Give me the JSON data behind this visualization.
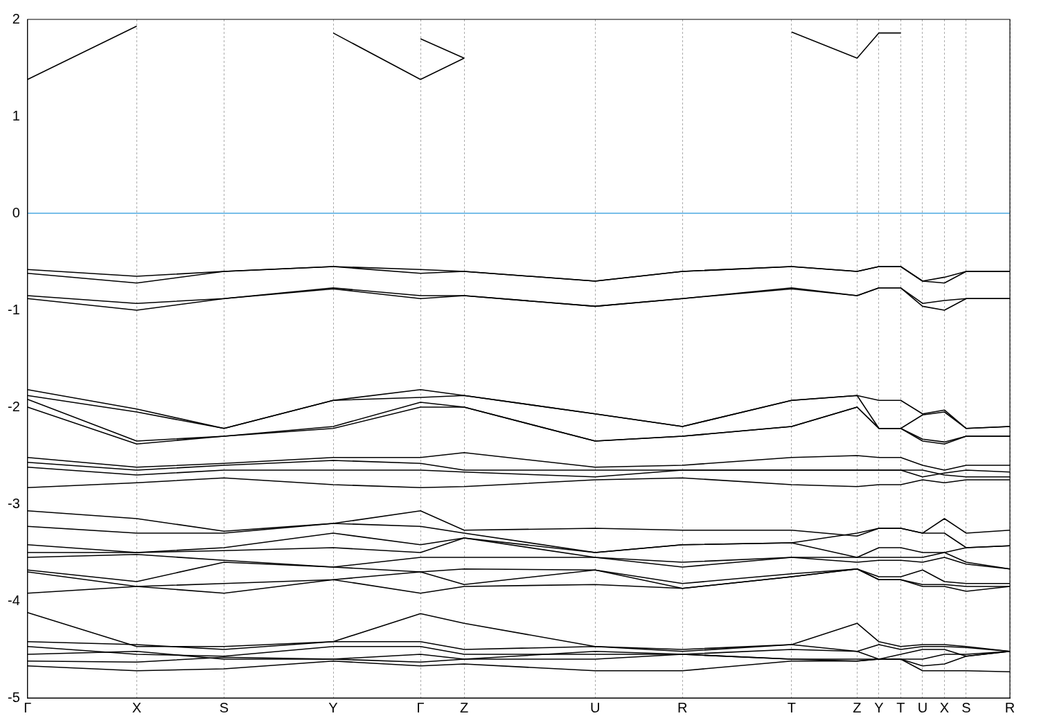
{
  "chart_data": {
    "type": "line",
    "categories": [
      "Γ",
      null,
      null,
      null,
      null,
      "X",
      null,
      null,
      null,
      "S",
      null,
      null,
      null,
      null,
      "Y",
      null,
      null,
      null,
      "Γ",
      null,
      "Z",
      null,
      null,
      null,
      null,
      null,
      "U",
      null,
      null,
      null,
      "R",
      null,
      null,
      null,
      null,
      "T",
      null,
      null,
      "Z",
      "Y",
      "T",
      "U",
      "X",
      "S",
      null,
      "R"
    ],
    "ylim": [
      -5,
      2
    ],
    "yticks": [
      -5,
      -4,
      -3,
      -2,
      -1,
      0,
      1,
      2
    ],
    "grid": "x",
    "legend": false,
    "marker": "none",
    "line_style": "solid",
    "ref_lines": [
      {
        "axis": "y",
        "value": 0,
        "color": "#4aa8e0"
      }
    ],
    "series": [
      {
        "color": "#000000",
        "values": [
          1.38,
          null,
          null,
          null,
          null,
          1.93,
          null,
          null,
          null,
          null,
          null,
          null,
          null,
          null,
          null,
          null,
          null,
          null,
          null,
          null,
          null,
          null,
          null,
          null,
          null,
          null,
          null,
          null,
          null,
          null,
          null,
          null,
          null,
          null,
          null,
          null,
          null,
          null,
          null,
          null,
          null,
          null,
          null,
          null,
          null,
          null
        ]
      },
      {
        "color": "#000000",
        "values": [
          null,
          null,
          null,
          null,
          null,
          null,
          null,
          null,
          null,
          null,
          null,
          null,
          null,
          null,
          1.86,
          null,
          null,
          null,
          1.38,
          null,
          1.6,
          null,
          null,
          null,
          null,
          null,
          null,
          null,
          null,
          null,
          null,
          null,
          null,
          null,
          null,
          null,
          null,
          null,
          null,
          null,
          null,
          null,
          null,
          null,
          null,
          null
        ]
      },
      {
        "color": "#000000",
        "values": [
          null,
          null,
          null,
          null,
          null,
          null,
          null,
          null,
          null,
          null,
          null,
          null,
          null,
          null,
          null,
          null,
          null,
          null,
          null,
          null,
          null,
          null,
          null,
          null,
          null,
          null,
          null,
          null,
          null,
          null,
          null,
          null,
          null,
          null,
          null,
          1.87,
          null,
          null,
          1.6,
          1.86,
          1.86,
          null,
          null,
          null,
          null,
          null
        ]
      },
      {
        "color": "#000000",
        "values": [
          null,
          null,
          null,
          null,
          null,
          null,
          null,
          null,
          null,
          null,
          null,
          null,
          null,
          null,
          null,
          null,
          null,
          null,
          1.8,
          null,
          1.6,
          null,
          null,
          null,
          null,
          null,
          null,
          null,
          null,
          null,
          null,
          null,
          null,
          null,
          null,
          null,
          null,
          null,
          null,
          null,
          null,
          null,
          null,
          null,
          null,
          null
        ]
      },
      {
        "color": "#000000",
        "values": [
          -0.58,
          null,
          null,
          null,
          null,
          -0.65,
          null,
          null,
          null,
          -0.6,
          null,
          null,
          null,
          null,
          -0.55,
          null,
          null,
          null,
          -0.58,
          null,
          -0.6,
          null,
          null,
          null,
          null,
          null,
          -0.7,
          null,
          null,
          null,
          -0.6,
          null,
          null,
          null,
          null,
          -0.55,
          null,
          null,
          -0.6,
          -0.55,
          -0.55,
          -0.7,
          -0.66,
          -0.6,
          null,
          -0.6
        ]
      },
      {
        "color": "#000000",
        "values": [
          -0.62,
          null,
          null,
          null,
          null,
          -0.72,
          null,
          null,
          null,
          -0.6,
          null,
          null,
          null,
          null,
          -0.55,
          null,
          null,
          null,
          -0.62,
          null,
          -0.6,
          null,
          null,
          null,
          null,
          null,
          -0.7,
          null,
          null,
          null,
          -0.6,
          null,
          null,
          null,
          null,
          -0.55,
          null,
          null,
          -0.6,
          -0.55,
          -0.55,
          -0.7,
          -0.72,
          -0.6,
          null,
          -0.6
        ]
      },
      {
        "color": "#000000",
        "values": [
          -0.85,
          null,
          null,
          null,
          null,
          -0.93,
          null,
          null,
          null,
          -0.88,
          null,
          null,
          null,
          null,
          -0.77,
          null,
          null,
          null,
          -0.85,
          null,
          -0.85,
          null,
          null,
          null,
          null,
          null,
          -0.96,
          null,
          null,
          null,
          -0.88,
          null,
          null,
          null,
          null,
          -0.77,
          null,
          null,
          -0.85,
          -0.77,
          -0.77,
          -0.93,
          -0.9,
          -0.88,
          null,
          -0.88
        ]
      },
      {
        "color": "#000000",
        "values": [
          -0.88,
          null,
          null,
          null,
          null,
          -1.0,
          null,
          null,
          null,
          -0.88,
          null,
          null,
          null,
          null,
          -0.78,
          null,
          null,
          null,
          -0.88,
          null,
          -0.85,
          null,
          null,
          null,
          null,
          null,
          -0.96,
          null,
          null,
          null,
          -0.88,
          null,
          null,
          null,
          null,
          -0.78,
          null,
          null,
          -0.85,
          -0.77,
          -0.77,
          -0.96,
          -1.0,
          -0.88,
          null,
          -0.88
        ]
      },
      {
        "color": "#000000",
        "values": [
          -1.82,
          null,
          null,
          null,
          null,
          -2.02,
          null,
          null,
          null,
          -2.22,
          null,
          null,
          null,
          null,
          -1.93,
          null,
          null,
          null,
          -1.82,
          null,
          -1.88,
          null,
          null,
          null,
          null,
          null,
          -2.07,
          null,
          null,
          null,
          -2.2,
          null,
          null,
          null,
          null,
          -1.93,
          null,
          null,
          -1.88,
          -1.93,
          -1.93,
          -2.07,
          -2.03,
          -2.22,
          null,
          -2.2
        ]
      },
      {
        "color": "#000000",
        "values": [
          -1.88,
          null,
          null,
          null,
          null,
          -2.05,
          null,
          null,
          null,
          -2.22,
          null,
          null,
          null,
          null,
          -1.93,
          null,
          null,
          null,
          -1.9,
          null,
          -1.88,
          null,
          null,
          null,
          null,
          null,
          -2.07,
          null,
          null,
          null,
          -2.2,
          null,
          null,
          null,
          null,
          -1.93,
          null,
          null,
          -1.88,
          -2.22,
          -2.22,
          -2.08,
          -2.05,
          -2.22,
          null,
          -2.2
        ]
      },
      {
        "color": "#000000",
        "values": [
          -1.92,
          null,
          null,
          null,
          null,
          -2.35,
          null,
          null,
          null,
          -2.3,
          null,
          null,
          null,
          null,
          -2.2,
          null,
          null,
          null,
          -1.95,
          null,
          -2.0,
          null,
          null,
          null,
          null,
          null,
          -2.35,
          null,
          null,
          null,
          -2.3,
          null,
          null,
          null,
          null,
          -2.2,
          null,
          null,
          -2.0,
          -2.22,
          -2.22,
          -2.33,
          -2.36,
          -2.3,
          null,
          -2.3
        ]
      },
      {
        "color": "#000000",
        "values": [
          -2.0,
          null,
          null,
          null,
          null,
          -2.38,
          null,
          null,
          null,
          -2.3,
          null,
          null,
          null,
          null,
          -2.22,
          null,
          null,
          null,
          -2.0,
          null,
          -2.0,
          null,
          null,
          null,
          null,
          null,
          -2.35,
          null,
          null,
          null,
          -2.3,
          null,
          null,
          null,
          null,
          -2.2,
          null,
          null,
          -2.0,
          -2.22,
          -2.22,
          -2.35,
          -2.38,
          -2.3,
          null,
          -2.3
        ]
      },
      {
        "color": "#000000",
        "values": [
          -2.52,
          null,
          null,
          null,
          null,
          -2.62,
          null,
          null,
          null,
          -2.58,
          null,
          null,
          null,
          null,
          -2.52,
          null,
          null,
          null,
          -2.52,
          null,
          -2.47,
          null,
          null,
          null,
          null,
          null,
          -2.62,
          null,
          null,
          null,
          -2.6,
          null,
          null,
          null,
          null,
          -2.52,
          null,
          null,
          -2.5,
          -2.52,
          -2.52,
          -2.6,
          -2.65,
          -2.6,
          null,
          -2.6
        ]
      },
      {
        "color": "#000000",
        "values": [
          -2.57,
          null,
          null,
          null,
          null,
          -2.65,
          null,
          null,
          null,
          -2.6,
          null,
          null,
          null,
          null,
          -2.55,
          null,
          null,
          null,
          -2.58,
          null,
          -2.65,
          null,
          null,
          null,
          null,
          null,
          -2.65,
          null,
          null,
          null,
          -2.65,
          null,
          null,
          null,
          null,
          -2.65,
          null,
          null,
          -2.65,
          -2.65,
          -2.65,
          -2.72,
          -2.68,
          -2.65,
          null,
          -2.67
        ]
      },
      {
        "color": "#000000",
        "values": [
          -2.62,
          null,
          null,
          null,
          null,
          -2.7,
          null,
          null,
          null,
          -2.65,
          null,
          null,
          null,
          null,
          -2.65,
          null,
          null,
          null,
          -2.65,
          null,
          -2.67,
          null,
          null,
          null,
          null,
          null,
          -2.72,
          null,
          null,
          null,
          -2.65,
          null,
          null,
          null,
          null,
          -2.65,
          null,
          null,
          -2.65,
          -2.65,
          -2.65,
          -2.65,
          -2.7,
          -2.72,
          null,
          -2.72
        ]
      },
      {
        "color": "#000000",
        "values": [
          -2.83,
          null,
          null,
          null,
          null,
          -2.78,
          null,
          null,
          null,
          -2.73,
          null,
          null,
          null,
          null,
          -2.8,
          null,
          null,
          null,
          -2.83,
          null,
          -2.82,
          null,
          null,
          null,
          null,
          null,
          -2.75,
          null,
          null,
          null,
          -2.73,
          null,
          null,
          null,
          null,
          -2.8,
          null,
          null,
          -2.82,
          -2.8,
          -2.8,
          -2.75,
          -2.78,
          -2.75,
          null,
          -2.75
        ]
      },
      {
        "color": "#000000",
        "values": [
          -3.07,
          null,
          null,
          null,
          null,
          -3.15,
          null,
          null,
          null,
          -3.28,
          null,
          null,
          null,
          null,
          -3.2,
          null,
          null,
          null,
          -3.07,
          null,
          -3.27,
          null,
          null,
          null,
          null,
          null,
          -3.25,
          null,
          null,
          null,
          -3.27,
          null,
          null,
          null,
          null,
          -3.27,
          null,
          null,
          -3.33,
          -3.25,
          -3.25,
          -3.3,
          -3.15,
          -3.3,
          null,
          -3.27
        ]
      },
      {
        "color": "#000000",
        "values": [
          -3.23,
          null,
          null,
          null,
          null,
          -3.3,
          null,
          null,
          null,
          -3.3,
          null,
          null,
          null,
          null,
          -3.2,
          null,
          null,
          null,
          -3.23,
          null,
          -3.3,
          null,
          null,
          null,
          null,
          null,
          -3.5,
          null,
          null,
          null,
          -3.42,
          null,
          null,
          null,
          null,
          -3.4,
          null,
          null,
          -3.3,
          -3.25,
          -3.25,
          -3.3,
          -3.3,
          -3.45,
          null,
          -3.43
        ]
      },
      {
        "color": "#000000",
        "values": [
          -3.42,
          null,
          null,
          null,
          null,
          -3.5,
          null,
          null,
          null,
          -3.45,
          null,
          null,
          null,
          null,
          -3.3,
          null,
          null,
          null,
          -3.42,
          null,
          -3.35,
          null,
          null,
          null,
          null,
          null,
          -3.5,
          null,
          null,
          null,
          -3.42,
          null,
          null,
          null,
          null,
          -3.4,
          null,
          null,
          -3.55,
          -3.45,
          -3.45,
          -3.5,
          -3.5,
          -3.45,
          null,
          -3.43
        ]
      },
      {
        "color": "#000000",
        "values": [
          -3.5,
          null,
          null,
          null,
          null,
          -3.5,
          null,
          null,
          null,
          -3.48,
          null,
          null,
          null,
          null,
          -3.45,
          null,
          null,
          null,
          -3.5,
          null,
          -3.35,
          null,
          null,
          null,
          null,
          null,
          -3.55,
          null,
          null,
          null,
          -3.6,
          null,
          null,
          null,
          null,
          -3.55,
          null,
          null,
          -3.55,
          -3.55,
          -3.55,
          -3.55,
          -3.5,
          -3.6,
          null,
          -3.67
        ]
      },
      {
        "color": "#000000",
        "values": [
          -3.55,
          null,
          null,
          null,
          null,
          -3.52,
          null,
          null,
          null,
          -3.58,
          null,
          null,
          null,
          null,
          -3.65,
          null,
          null,
          null,
          -3.55,
          null,
          -3.55,
          null,
          null,
          null,
          null,
          null,
          -3.55,
          null,
          null,
          null,
          -3.65,
          null,
          null,
          null,
          null,
          -3.55,
          null,
          null,
          -3.6,
          -3.58,
          -3.58,
          -3.6,
          -3.55,
          -3.62,
          null,
          -3.67
        ]
      },
      {
        "color": "#000000",
        "values": [
          -3.68,
          null,
          null,
          null,
          null,
          -3.8,
          null,
          null,
          null,
          -3.6,
          null,
          null,
          null,
          null,
          -3.65,
          null,
          null,
          null,
          -3.7,
          null,
          -3.67,
          null,
          null,
          null,
          null,
          null,
          -3.68,
          null,
          null,
          null,
          -3.82,
          null,
          null,
          null,
          null,
          -3.72,
          null,
          null,
          -3.67,
          -3.75,
          -3.75,
          -3.68,
          -3.8,
          -3.82,
          null,
          -3.82
        ]
      },
      {
        "color": "#000000",
        "values": [
          -3.7,
          null,
          null,
          null,
          null,
          -3.85,
          null,
          null,
          null,
          -3.82,
          null,
          null,
          null,
          null,
          -3.78,
          null,
          null,
          null,
          -3.7,
          null,
          -3.83,
          null,
          null,
          null,
          null,
          null,
          -3.68,
          null,
          null,
          null,
          -3.87,
          null,
          null,
          null,
          null,
          -3.75,
          null,
          null,
          -3.67,
          -3.78,
          -3.78,
          -3.83,
          -3.83,
          -3.85,
          null,
          -3.85
        ]
      },
      {
        "color": "#000000",
        "values": [
          -3.92,
          null,
          null,
          null,
          null,
          -3.85,
          null,
          null,
          null,
          -3.92,
          null,
          null,
          null,
          null,
          -3.78,
          null,
          null,
          null,
          -3.92,
          null,
          -3.85,
          null,
          null,
          null,
          null,
          null,
          -3.83,
          null,
          null,
          null,
          -3.87,
          null,
          null,
          null,
          null,
          -3.75,
          null,
          null,
          -3.67,
          -3.78,
          -3.78,
          -3.85,
          -3.85,
          -3.9,
          null,
          -3.85
        ]
      },
      {
        "color": "#000000",
        "values": [
          -4.12,
          null,
          null,
          null,
          null,
          -4.47,
          null,
          null,
          null,
          -4.47,
          null,
          null,
          null,
          null,
          -4.42,
          null,
          null,
          null,
          -4.13,
          null,
          -4.23,
          null,
          null,
          null,
          null,
          null,
          -4.47,
          null,
          null,
          null,
          -4.52,
          null,
          null,
          null,
          null,
          -4.45,
          null,
          null,
          -4.23,
          -4.42,
          -4.47,
          -4.45,
          -4.45,
          -4.47,
          null,
          -4.52
        ]
      },
      {
        "color": "#000000",
        "values": [
          -4.42,
          null,
          null,
          null,
          null,
          -4.45,
          null,
          null,
          null,
          -4.5,
          null,
          null,
          null,
          null,
          -4.42,
          null,
          null,
          null,
          -4.42,
          null,
          -4.5,
          null,
          null,
          null,
          null,
          null,
          -4.47,
          null,
          null,
          null,
          -4.5,
          null,
          null,
          null,
          null,
          -4.45,
          null,
          null,
          -4.52,
          -4.45,
          -4.5,
          -4.47,
          -4.47,
          -4.48,
          null,
          -4.52
        ]
      },
      {
        "color": "#000000",
        "values": [
          -4.47,
          null,
          null,
          null,
          null,
          -4.55,
          null,
          null,
          null,
          -4.57,
          null,
          null,
          null,
          null,
          -4.47,
          null,
          null,
          null,
          -4.47,
          null,
          -4.55,
          null,
          null,
          null,
          null,
          null,
          -4.55,
          null,
          null,
          null,
          -4.55,
          null,
          null,
          null,
          null,
          -4.5,
          null,
          null,
          -4.52,
          -4.6,
          -4.55,
          -4.5,
          -4.5,
          -4.57,
          null,
          -4.52
        ]
      },
      {
        "color": "#000000",
        "values": [
          -4.55,
          null,
          null,
          null,
          null,
          -4.52,
          null,
          null,
          null,
          -4.6,
          null,
          null,
          null,
          null,
          -4.6,
          null,
          null,
          null,
          -4.55,
          null,
          -4.6,
          null,
          null,
          null,
          null,
          null,
          -4.6,
          null,
          null,
          null,
          -4.55,
          null,
          null,
          null,
          null,
          -4.6,
          null,
          null,
          -4.6,
          -4.6,
          -4.6,
          -4.6,
          -4.55,
          -4.55,
          null,
          -4.52
        ]
      },
      {
        "color": "#000000",
        "values": [
          -4.62,
          null,
          null,
          null,
          null,
          -4.63,
          null,
          null,
          null,
          -4.58,
          null,
          null,
          null,
          null,
          -4.6,
          null,
          null,
          null,
          -4.63,
          null,
          -4.6,
          null,
          null,
          null,
          null,
          null,
          -4.52,
          null,
          null,
          null,
          -4.55,
          null,
          null,
          null,
          null,
          -4.6,
          null,
          null,
          -4.62,
          -4.6,
          -4.6,
          -4.67,
          -4.65,
          -4.57,
          null,
          -4.52
        ]
      },
      {
        "color": "#000000",
        "values": [
          -4.67,
          null,
          null,
          null,
          null,
          -4.72,
          null,
          null,
          null,
          -4.7,
          null,
          null,
          null,
          null,
          -4.62,
          null,
          null,
          null,
          -4.67,
          null,
          -4.65,
          null,
          null,
          null,
          null,
          null,
          -4.72,
          null,
          null,
          null,
          -4.72,
          null,
          null,
          null,
          null,
          -4.62,
          null,
          null,
          -4.62,
          -4.6,
          -4.6,
          -4.72,
          -4.72,
          -4.72,
          null,
          -4.73
        ]
      }
    ]
  }
}
